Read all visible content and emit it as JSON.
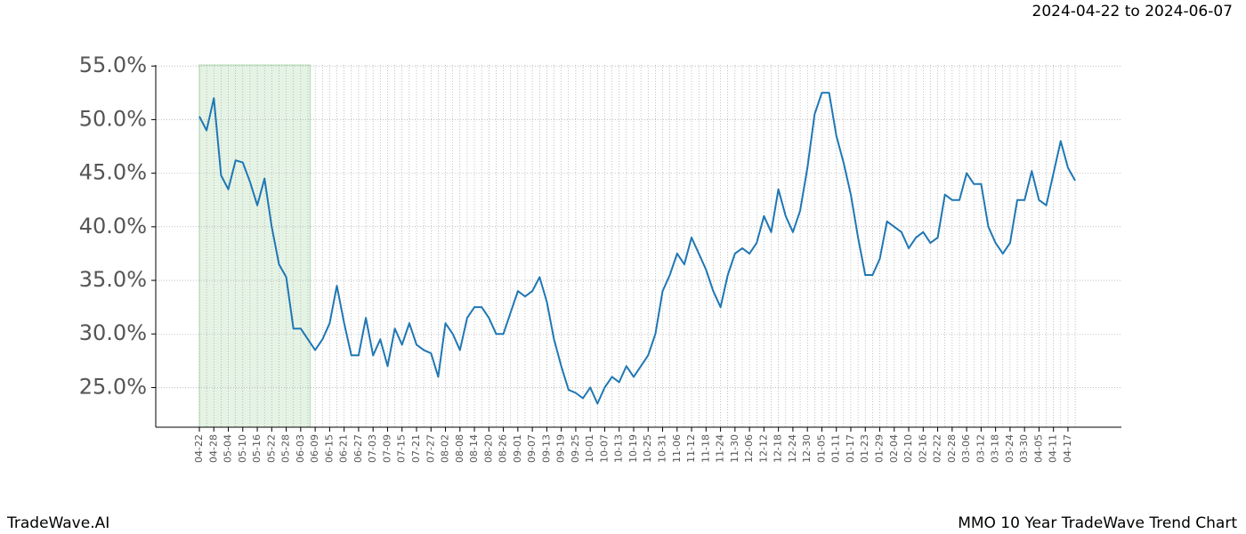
{
  "chart_data": {
    "type": "line",
    "title": "MMO 10 Year TradeWave Trend Chart",
    "subtitle": "2024-04-22 to 2024-06-07",
    "brand": "TradeWave.AI",
    "color": "#1f77b4",
    "shade_color": "#2ca02c",
    "shaded_span": [
      0,
      15.33
    ],
    "grid": true,
    "categories": [
      "04-22",
      null,
      "04-28",
      null,
      "05-04",
      null,
      "05-10",
      null,
      "05-16",
      null,
      "05-22",
      null,
      "05-28",
      null,
      "06-03",
      null,
      "06-09",
      null,
      "06-15",
      null,
      "06-21",
      null,
      "06-27",
      null,
      "07-03",
      null,
      "07-09",
      null,
      "07-15",
      null,
      "07-21",
      null,
      "07-27",
      null,
      "08-02",
      null,
      "08-08",
      null,
      "08-14",
      null,
      "08-20",
      null,
      "08-26",
      null,
      "09-01",
      null,
      "09-07",
      null,
      "09-13",
      null,
      "09-19",
      null,
      "09-25",
      null,
      "10-01",
      null,
      "10-07",
      null,
      "10-13",
      null,
      "10-19",
      null,
      "10-25",
      null,
      "10-31",
      null,
      "11-06",
      null,
      "11-12",
      null,
      "11-18",
      null,
      "11-24",
      null,
      "11-30",
      null,
      "12-06",
      null,
      "12-12",
      null,
      "12-18",
      null,
      "12-24",
      null,
      "12-30",
      null,
      "01-05",
      null,
      "01-11",
      null,
      "01-17",
      null,
      "01-23",
      null,
      "01-29",
      null,
      "02-04",
      null,
      "02-10",
      null,
      "02-16",
      null,
      "02-22",
      null,
      "02-28",
      null,
      "03-06",
      null,
      "03-12",
      null,
      "03-18",
      null,
      "03-24",
      null,
      "03-30",
      null,
      "04-05",
      null,
      "04-11",
      null,
      "04-17",
      null
    ],
    "values": [
      50.3,
      49.0,
      52.0,
      44.8,
      43.5,
      46.2,
      46.0,
      44.2,
      42.0,
      44.5,
      40.0,
      36.5,
      35.3,
      30.5,
      30.5,
      29.5,
      28.5,
      29.5,
      31.0,
      34.5,
      31.0,
      28.0,
      28.0,
      31.5,
      28.0,
      29.5,
      27.0,
      30.5,
      29.0,
      31.0,
      29.0,
      28.5,
      28.2,
      26.0,
      31.0,
      30.0,
      28.5,
      31.5,
      32.5,
      32.5,
      31.5,
      30.0,
      30.0,
      32.0,
      34.0,
      33.5,
      34.0,
      35.3,
      33.0,
      29.5,
      27.0,
      24.8,
      24.5,
      24.0,
      25.0,
      23.5,
      25.0,
      26.0,
      25.5,
      27.0,
      26.0,
      27.0,
      28.0,
      30.0,
      34.0,
      35.5,
      37.5,
      36.5,
      39.0,
      37.5,
      36.0,
      34.0,
      32.5,
      35.5,
      37.5,
      38.0,
      37.5,
      38.5,
      41.0,
      39.5,
      43.5,
      41.0,
      39.5,
      41.5,
      45.5,
      50.5,
      52.5,
      52.5,
      48.5,
      46.0,
      43.0,
      39.0,
      35.5,
      35.5,
      37.0,
      40.5,
      40.0,
      39.5,
      38.0,
      39.0,
      39.5,
      38.5,
      39.0,
      43.0,
      42.5,
      42.5,
      45.0,
      44.0,
      44.0,
      40.0,
      38.5,
      37.5,
      38.5,
      42.5,
      42.5,
      45.2,
      42.5,
      42.0,
      45.0,
      48.0,
      45.5,
      44.3
    ],
    "ylim": [
      21.3,
      55.1
    ],
    "yticks": [
      {
        "value": 25,
        "label": "25.0%"
      },
      {
        "value": 30,
        "label": "30.0%"
      },
      {
        "value": 35,
        "label": "35.0%"
      },
      {
        "value": 40,
        "label": "40.0%"
      },
      {
        "value": 45,
        "label": "45.0%"
      },
      {
        "value": 50,
        "label": "50.0%"
      },
      {
        "value": 55,
        "label": "55.0%"
      }
    ]
  }
}
